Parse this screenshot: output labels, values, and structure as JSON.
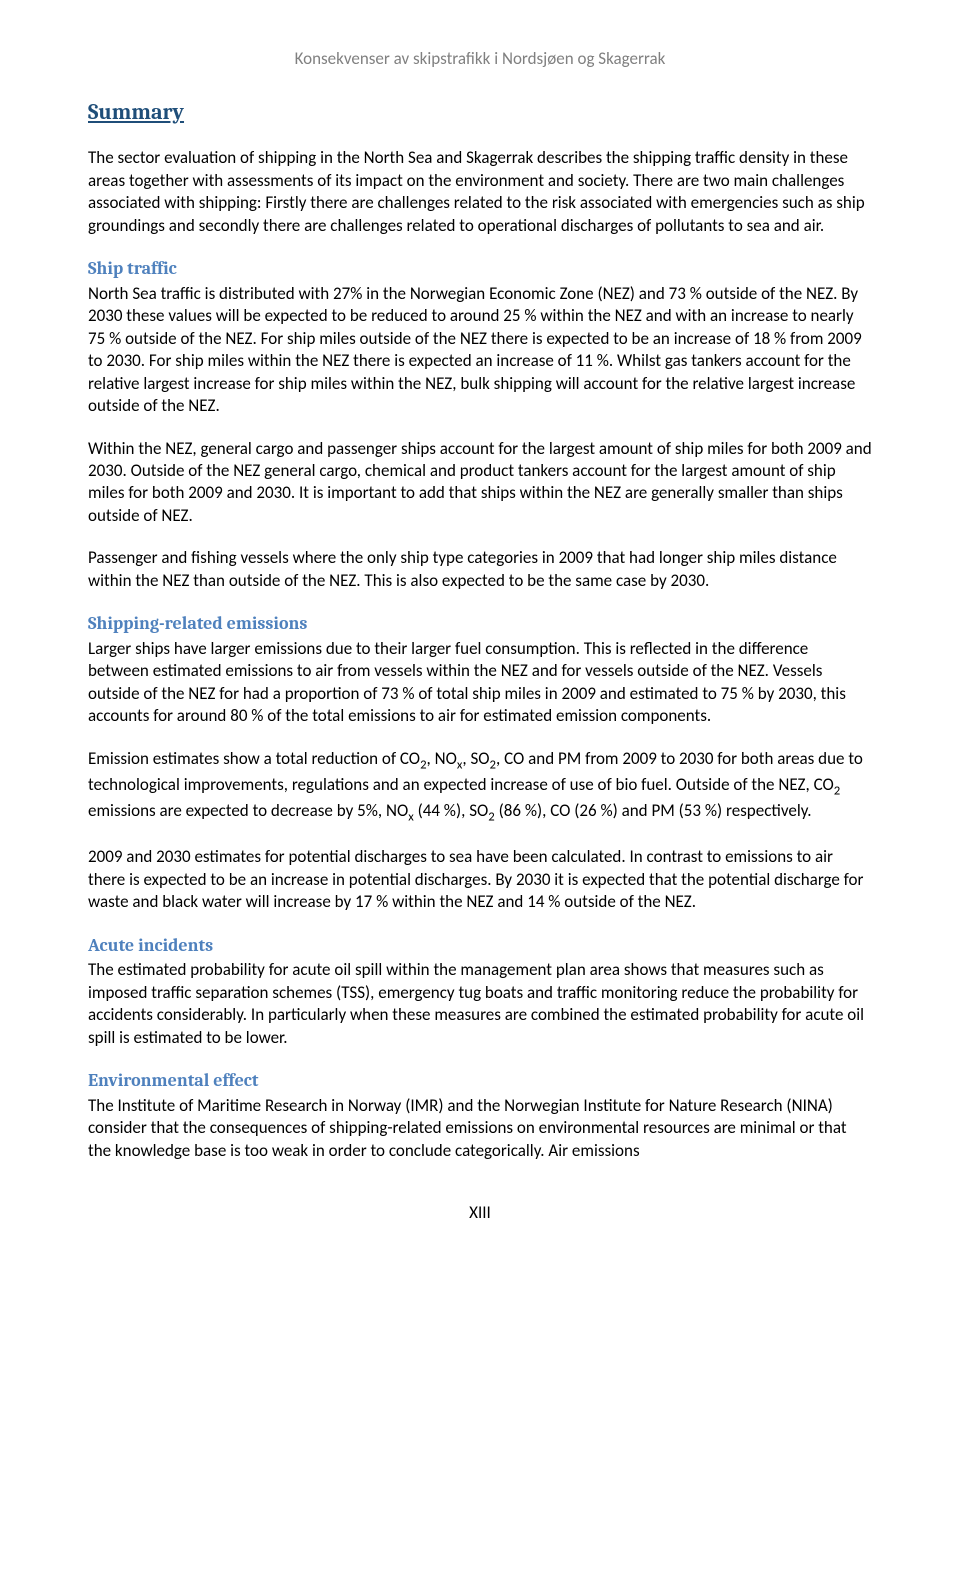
{
  "header": "Konsekvenser av skipstrafikk i Nordsjøen og Skagerrak",
  "title": "Summary",
  "intro": "The sector evaluation of shipping in the North Sea and Skagerrak describes the shipping traffic density in these areas together with assessments of its impact on the environment and society. There are two main challenges associated with shipping: Firstly there are challenges related to the risk associated with emergencies such as ship groundings and secondly there are challenges related to operational discharges of pollutants to sea and air.",
  "sections": {
    "shipTraffic": {
      "heading": "Ship traffic",
      "p1": "North Sea traffic is distributed with 27% in the Norwegian Economic Zone (NEZ) and 73 % outside of the NEZ. By 2030 these values will be expected to be reduced to around 25 % within the NEZ and with an increase to nearly 75 % outside of the NEZ. For ship miles outside of the NEZ there is expected to be an increase of 18 % from 2009 to 2030. For ship miles within the NEZ there is expected an increase of 11 %.  Whilst gas tankers account for the relative largest increase for ship miles within the NEZ, bulk shipping will account for the relative largest increase outside of the NEZ.",
      "p2": "Within the NEZ, general cargo and passenger ships account for the largest amount of ship miles for both 2009 and 2030. Outside of the NEZ general cargo, chemical and product tankers account for the largest amount of ship miles for both 2009 and 2030. It is important to add that ships within the NEZ are generally smaller than ships outside of NEZ.",
      "p3": "Passenger and fishing vessels where the only ship type categories in 2009 that had longer ship miles distance within the NEZ than outside of the NEZ. This is also expected to be the same case by 2030."
    },
    "emissions": {
      "heading": "Shipping-related emissions",
      "p1": "Larger ships have larger emissions due to their larger fuel consumption. This is reflected in the difference between estimated emissions to air from vessels within the NEZ and for vessels outside of the NEZ. Vessels outside of the NEZ for had a proportion of 73 % of total ship miles in 2009 and estimated to 75 % by 2030, this accounts for around 80 % of the total emissions to air for estimated emission components.",
      "p2a": "Emission estimates show a total reduction of CO",
      "p2b": ", NO",
      "p2c": ", SO",
      "p2d": ", CO and PM from 2009 to 2030 for both areas due to technological improvements, regulations and an expected increase of use of bio fuel. Outside of the NEZ, CO",
      "p2e": " emissions are expected to decrease by 5%, NO",
      "p2f": " (44 %), SO",
      "p2g": " (86 %), CO (26 %) and PM (53 %) respectively.",
      "sub2": "2",
      "subx": "x",
      "p3": "2009 and 2030 estimates for potential discharges to sea have been calculated. In contrast to emissions to air there is expected to be an increase in potential discharges. By 2030 it is expected that the potential discharge for waste and black water will increase by 17 % within the NEZ and 14 % outside of the NEZ."
    },
    "acute": {
      "heading": "Acute incidents",
      "p1": "The estimated probability for acute oil spill within the management plan area shows that measures such as imposed traffic separation schemes (TSS), emergency tug boats and traffic monitoring reduce the probability for accidents considerably.  In particularly when these measures are combined the estimated probability for acute oil spill is estimated to be lower."
    },
    "env": {
      "heading": "Environmental effect",
      "p1": "The Institute of Maritime Research in Norway (IMR) and the Norwegian Institute for Nature Research (NINA) consider that the consequences of shipping-related emissions on environmental resources are minimal or that the knowledge base is too weak in order to conclude categorically. Air emissions"
    }
  },
  "pageNumber": "XIII"
}
